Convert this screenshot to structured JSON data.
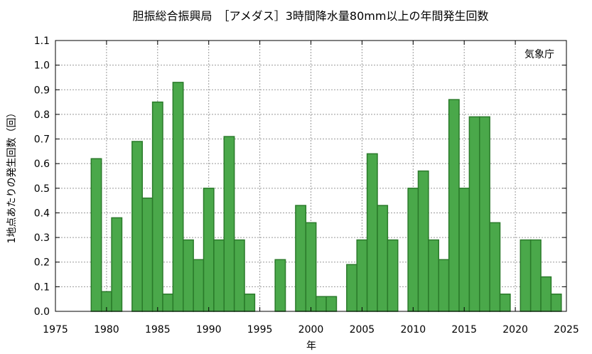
{
  "chart_data": {
    "type": "bar",
    "title": "胆振総合振興局　［アメダス］3時間降水量80mm以上の年間発生回数",
    "xlabel": "年",
    "ylabel": "1地点あたりの発生回数（回）",
    "source": "気象庁",
    "xlim": [
      1975,
      2025
    ],
    "ylim": [
      0.0,
      1.1
    ],
    "x_ticks": [
      1975,
      1980,
      1985,
      1990,
      1995,
      2000,
      2005,
      2010,
      2015,
      2020,
      2025
    ],
    "y_ticks": [
      "0.0",
      "0.1",
      "0.2",
      "0.3",
      "0.4",
      "0.5",
      "0.6",
      "0.7",
      "0.8",
      "0.9",
      "1.0",
      "1.1"
    ],
    "grid": true,
    "colors": {
      "bar_fill": "#4aa84a",
      "bar_stroke": "#2a7a2a",
      "grid": "#999999"
    },
    "data": [
      {
        "year": 1979,
        "value": 0.62
      },
      {
        "year": 1980,
        "value": 0.08
      },
      {
        "year": 1981,
        "value": 0.38
      },
      {
        "year": 1983,
        "value": 0.69
      },
      {
        "year": 1984,
        "value": 0.46
      },
      {
        "year": 1985,
        "value": 0.85
      },
      {
        "year": 1986,
        "value": 0.07
      },
      {
        "year": 1987,
        "value": 0.93
      },
      {
        "year": 1988,
        "value": 0.29
      },
      {
        "year": 1989,
        "value": 0.21
      },
      {
        "year": 1990,
        "value": 0.5
      },
      {
        "year": 1991,
        "value": 0.29
      },
      {
        "year": 1992,
        "value": 0.71
      },
      {
        "year": 1993,
        "value": 0.29
      },
      {
        "year": 1994,
        "value": 0.07
      },
      {
        "year": 1997,
        "value": 0.21
      },
      {
        "year": 1999,
        "value": 0.43
      },
      {
        "year": 2000,
        "value": 0.36
      },
      {
        "year": 2001,
        "value": 0.06
      },
      {
        "year": 2002,
        "value": 0.06
      },
      {
        "year": 2004,
        "value": 0.19
      },
      {
        "year": 2005,
        "value": 0.29
      },
      {
        "year": 2006,
        "value": 0.64
      },
      {
        "year": 2007,
        "value": 0.43
      },
      {
        "year": 2008,
        "value": 0.29
      },
      {
        "year": 2010,
        "value": 0.5
      },
      {
        "year": 2011,
        "value": 0.57
      },
      {
        "year": 2012,
        "value": 0.29
      },
      {
        "year": 2013,
        "value": 0.21
      },
      {
        "year": 2014,
        "value": 0.86
      },
      {
        "year": 2015,
        "value": 0.5
      },
      {
        "year": 2016,
        "value": 0.79
      },
      {
        "year": 2017,
        "value": 0.79
      },
      {
        "year": 2018,
        "value": 0.36
      },
      {
        "year": 2019,
        "value": 0.07
      },
      {
        "year": 2021,
        "value": 0.29
      },
      {
        "year": 2022,
        "value": 0.29
      },
      {
        "year": 2023,
        "value": 0.14
      },
      {
        "year": 2024,
        "value": 0.07
      }
    ]
  }
}
